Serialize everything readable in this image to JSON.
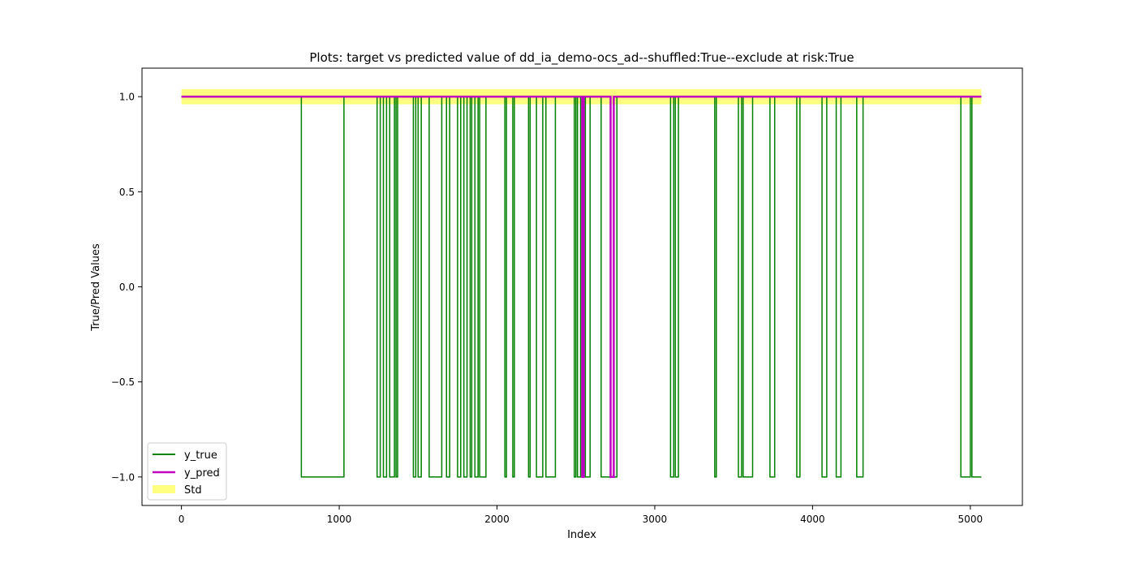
{
  "chart_data": {
    "type": "line",
    "title": "Plots: target vs predicted value of dd_ia_demo-ocs_ad--shuffled:True--exclude at risk:True",
    "xlabel": "Index",
    "ylabel": "True/Pred Values",
    "xlim": [
      -250,
      5330
    ],
    "ylim": [
      -1.15,
      1.15
    ],
    "x_ticks": [
      0,
      1000,
      2000,
      3000,
      4000,
      5000
    ],
    "x_tick_labels": [
      "0",
      "1000",
      "2000",
      "3000",
      "4000",
      "5000"
    ],
    "y_ticks": [
      1.0,
      0.5,
      0.0,
      -0.5,
      -1.0
    ],
    "y_tick_labels": [
      "1.0",
      "0.5",
      "0.0",
      "−0.5",
      "−1.0"
    ],
    "grid": false,
    "legend_position": "lower-left",
    "x_max": 5070,
    "series": [
      {
        "name": "y_true",
        "color": "#008000",
        "style": "step",
        "base_value": 1,
        "low_value": -1,
        "low_intervals": [
          [
            760,
            1030
          ],
          [
            1240,
            1260
          ],
          [
            1280,
            1300
          ],
          [
            1320,
            1350
          ],
          [
            1360,
            1370
          ],
          [
            1470,
            1485
          ],
          [
            1500,
            1520
          ],
          [
            1570,
            1650
          ],
          [
            1680,
            1700
          ],
          [
            1750,
            1770
          ],
          [
            1790,
            1810
          ],
          [
            1830,
            1840
          ],
          [
            1860,
            1880
          ],
          [
            1890,
            1930
          ],
          [
            2050,
            2060
          ],
          [
            2100,
            2110
          ],
          [
            2200,
            2210
          ],
          [
            2250,
            2290
          ],
          [
            2310,
            2370
          ],
          [
            2490,
            2500
          ],
          [
            2510,
            2530
          ],
          [
            2560,
            2590
          ],
          [
            2660,
            2760
          ],
          [
            3100,
            3120
          ],
          [
            3130,
            3150
          ],
          [
            3380,
            3390
          ],
          [
            3530,
            3550
          ],
          [
            3560,
            3620
          ],
          [
            3730,
            3760
          ],
          [
            3900,
            3920
          ],
          [
            4060,
            4090
          ],
          [
            4150,
            4180
          ],
          [
            4280,
            4320
          ],
          [
            4940,
            5000
          ],
          [
            5010,
            5070
          ]
        ]
      },
      {
        "name": "y_pred",
        "color": "#bf00bf",
        "style": "step",
        "base_value": 1,
        "low_value": -1,
        "low_intervals": [
          [
            2540,
            2550
          ],
          [
            2720,
            2740
          ]
        ]
      }
    ],
    "bands": [
      {
        "name": "Std",
        "color": "#ffff80",
        "x": [
          0,
          5070
        ],
        "y": [
          0.96,
          1.04
        ]
      }
    ]
  }
}
